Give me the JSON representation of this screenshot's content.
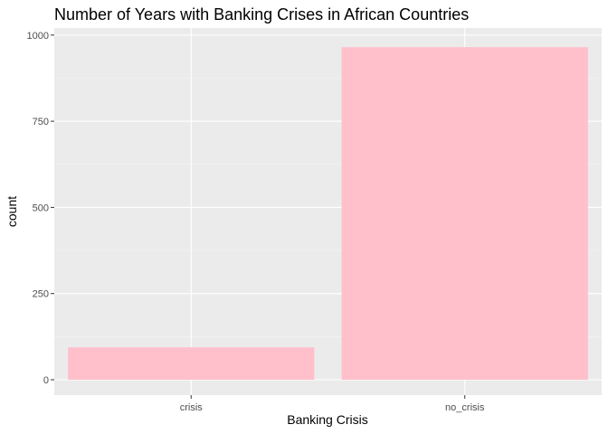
{
  "chart_data": {
    "type": "bar",
    "title": "Number of Years with Banking Crises in African Countries",
    "xlabel": "Banking Crisis",
    "ylabel": "count",
    "categories": [
      "crisis",
      "no_crisis"
    ],
    "values": [
      94,
      965
    ],
    "ylim": [
      0,
      1010
    ],
    "yticks": [
      0,
      250,
      500,
      750,
      1000
    ],
    "ytick_labels": [
      "0",
      "250",
      "500",
      "750",
      "1000"
    ],
    "grid": true,
    "legend": "none",
    "colors": {
      "bar": "#ffc0cb",
      "panel": "#ebebeb",
      "grid_major": "#ffffff",
      "grid_minor": "#f5f5f5",
      "tick": "#333333"
    }
  }
}
